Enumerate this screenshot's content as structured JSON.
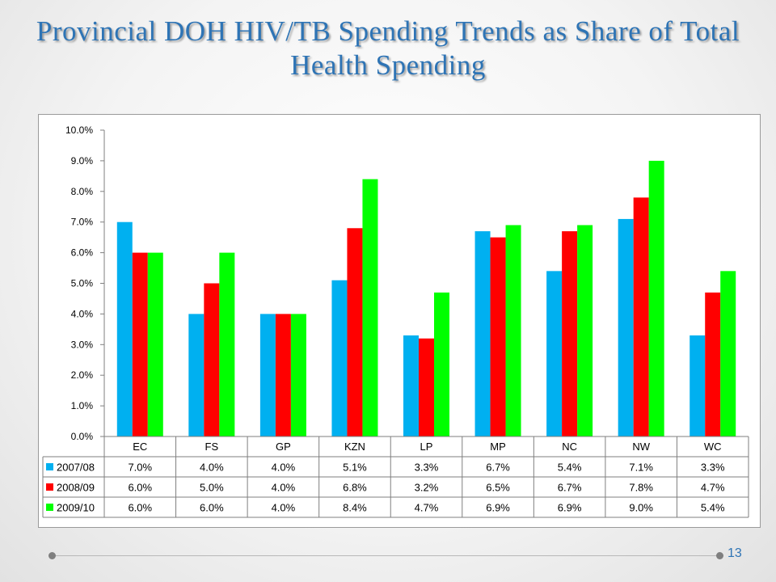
{
  "slide": {
    "title": "Provincial DOH HIV/TB Spending Trends as Share of Total Health Spending",
    "page_number": "13"
  },
  "chart_data": {
    "type": "bar",
    "title": "",
    "categories": [
      "EC",
      "FS",
      "GP",
      "KZN",
      "LP",
      "MP",
      "NC",
      "NW",
      "WC"
    ],
    "series": [
      {
        "name": "2007/08",
        "color": "#00b0f0",
        "values": [
          7.0,
          4.0,
          4.0,
          5.1,
          3.3,
          6.7,
          5.4,
          7.1,
          3.3
        ],
        "labels": [
          "7.0%",
          "4.0%",
          "4.0%",
          "5.1%",
          "3.3%",
          "6.7%",
          "5.4%",
          "7.1%",
          "3.3%"
        ]
      },
      {
        "name": "2008/09",
        "color": "#ff0000",
        "values": [
          6.0,
          5.0,
          4.0,
          6.8,
          3.2,
          6.5,
          6.7,
          7.8,
          4.7
        ],
        "labels": [
          "6.0%",
          "5.0%",
          "4.0%",
          "6.8%",
          "3.2%",
          "6.5%",
          "6.7%",
          "7.8%",
          "4.7%"
        ]
      },
      {
        "name": "2009/10",
        "color": "#00ff00",
        "values": [
          6.0,
          6.0,
          4.0,
          8.4,
          4.7,
          6.9,
          6.9,
          9.0,
          5.4
        ],
        "labels": [
          "6.0%",
          "6.0%",
          "4.0%",
          "8.4%",
          "4.7%",
          "6.9%",
          "6.9%",
          "9.0%",
          "5.4%"
        ]
      }
    ],
    "ylim": [
      0,
      10
    ],
    "yticks": [
      "0.0%",
      "1.0%",
      "2.0%",
      "3.0%",
      "4.0%",
      "5.0%",
      "6.0%",
      "7.0%",
      "8.0%",
      "9.0%",
      "10.0%"
    ],
    "grid": false,
    "legend": "data-table"
  }
}
